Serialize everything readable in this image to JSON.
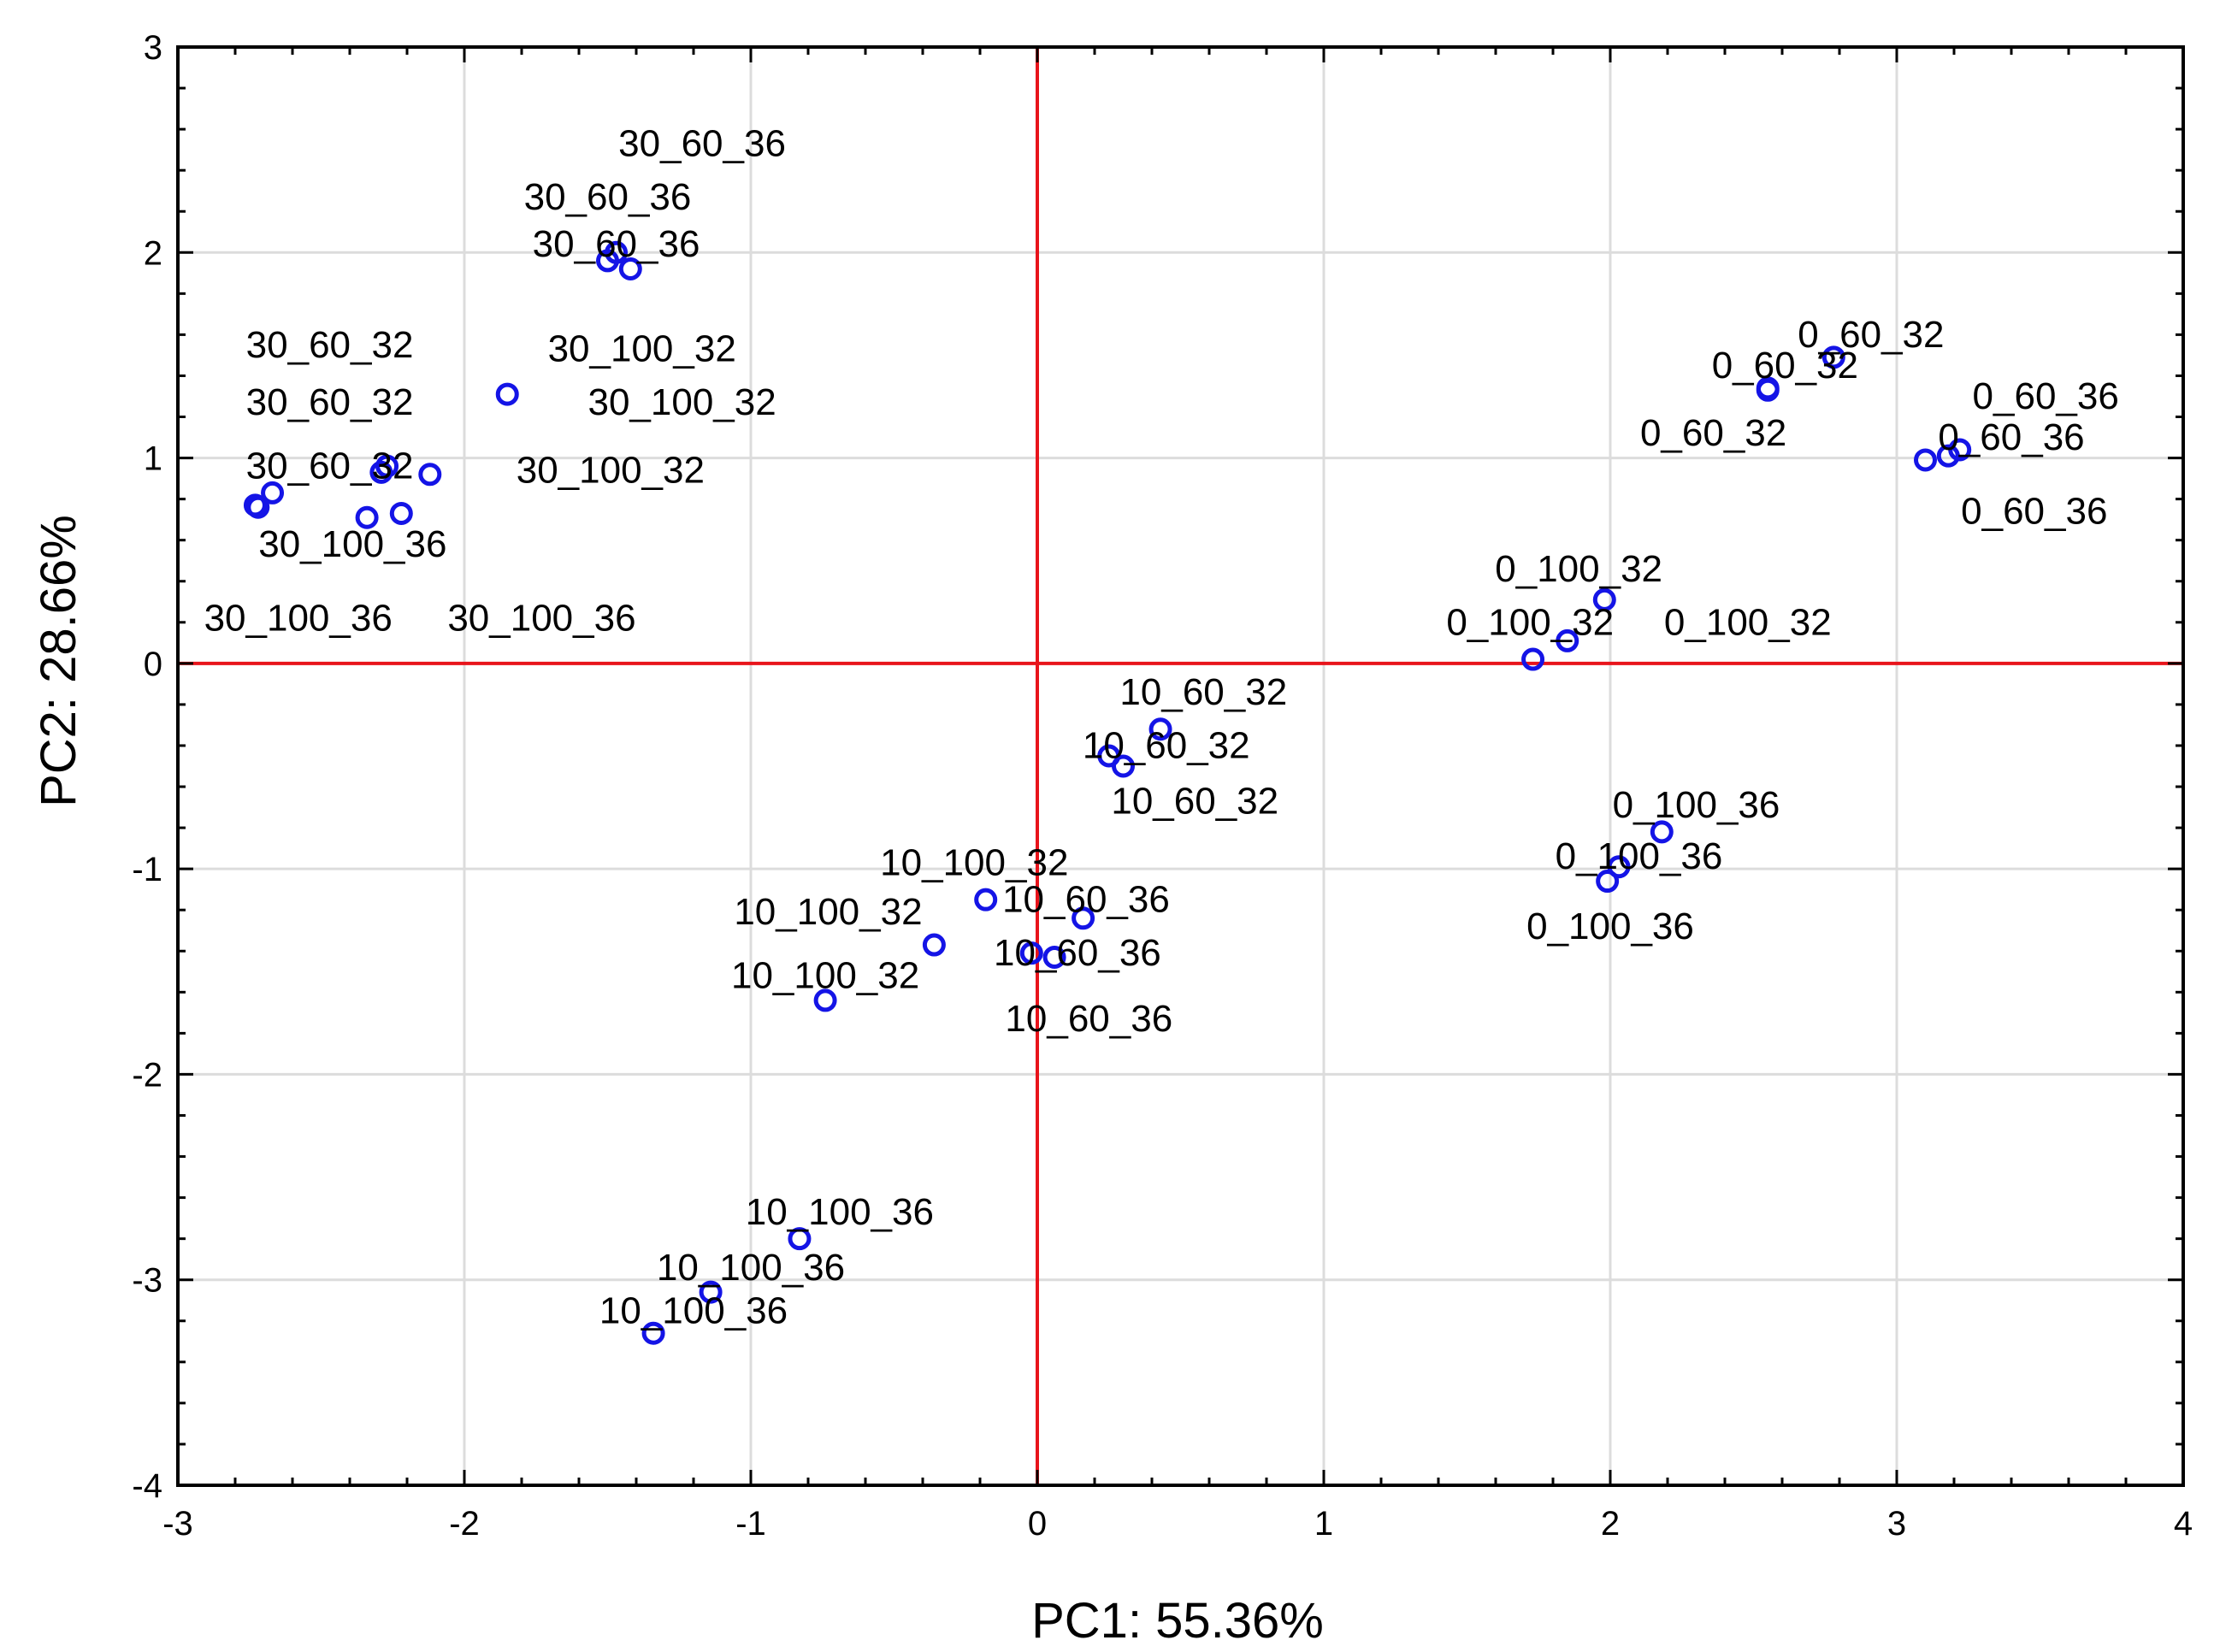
{
  "chart_data": {
    "type": "scatter",
    "title": "",
    "xlabel": "PC1: 55.36%",
    "ylabel": "PC2: 28.66%",
    "xlim": [
      -3,
      4
    ],
    "ylim": [
      -4,
      3
    ],
    "xticks": [
      -3,
      -2,
      -1,
      0,
      1,
      2,
      3,
      4
    ],
    "yticks": [
      -4,
      -3,
      -2,
      -1,
      0,
      1,
      2,
      3
    ],
    "grid": true,
    "reference_lines": {
      "x": 0,
      "y": 0,
      "color": "#e8141b"
    },
    "marker": {
      "shape": "circle",
      "fill": "none",
      "color": "#1414e6"
    },
    "points": [
      {
        "x": -1.5,
        "y": 1.96
      },
      {
        "x": -1.47,
        "y": 2.0
      },
      {
        "x": -1.42,
        "y": 1.92
      },
      {
        "x": -1.85,
        "y": 1.31
      },
      {
        "x": -2.72,
        "y": 0.76
      },
      {
        "x": -2.67,
        "y": 0.83
      },
      {
        "x": -2.29,
        "y": 0.93
      },
      {
        "x": -2.27,
        "y": 0.96
      },
      {
        "x": -2.12,
        "y": 0.92
      },
      {
        "x": -2.34,
        "y": 0.71
      },
      {
        "x": -2.22,
        "y": 0.73
      },
      {
        "x": -2.73,
        "y": 0.77
      },
      {
        "x": 2.78,
        "y": 1.49
      },
      {
        "x": 2.55,
        "y": 1.33
      },
      {
        "x": 2.55,
        "y": 1.34
      },
      {
        "x": 3.1,
        "y": 0.99
      },
      {
        "x": 3.18,
        "y": 1.01
      },
      {
        "x": 3.22,
        "y": 1.04
      },
      {
        "x": 1.98,
        "y": 0.31
      },
      {
        "x": 1.85,
        "y": 0.11
      },
      {
        "x": 1.73,
        "y": 0.02
      },
      {
        "x": 0.43,
        "y": -0.32
      },
      {
        "x": 0.25,
        "y": -0.45
      },
      {
        "x": 0.3,
        "y": -0.5
      },
      {
        "x": 2.18,
        "y": -0.82
      },
      {
        "x": 2.03,
        "y": -0.99
      },
      {
        "x": 1.99,
        "y": -1.06
      },
      {
        "x": -0.18,
        "y": -1.15
      },
      {
        "x": -0.36,
        "y": -1.37
      },
      {
        "x": -0.74,
        "y": -1.64
      },
      {
        "x": 0.16,
        "y": -1.24
      },
      {
        "x": -0.02,
        "y": -1.41
      },
      {
        "x": 0.06,
        "y": -1.43
      },
      {
        "x": -0.83,
        "y": -2.8
      },
      {
        "x": -1.14,
        "y": -3.06
      },
      {
        "x": -1.34,
        "y": -3.26
      }
    ],
    "labels": [
      {
        "text": "30_60_36",
        "x": -1.17,
        "y": 2.53
      },
      {
        "text": "30_60_36",
        "x": -1.5,
        "y": 2.27
      },
      {
        "text": "30_60_36",
        "x": -1.47,
        "y": 2.04
      },
      {
        "text": "30_100_32",
        "x": -1.38,
        "y": 1.53
      },
      {
        "text": "30_100_32",
        "x": -1.24,
        "y": 1.27
      },
      {
        "text": "30_100_32",
        "x": -1.49,
        "y": 0.94
      },
      {
        "text": "30_60_32",
        "x": -2.47,
        "y": 1.55
      },
      {
        "text": "30_60_32",
        "x": -2.47,
        "y": 1.27
      },
      {
        "text": "30_60_32",
        "x": -2.47,
        "y": 0.96
      },
      {
        "text": "30_100_36",
        "x": -2.39,
        "y": 0.58
      },
      {
        "text": "30_100_36",
        "x": -2.58,
        "y": 0.22
      },
      {
        "text": "30_100_36",
        "x": -1.73,
        "y": 0.22
      },
      {
        "text": "0_60_32",
        "x": 2.91,
        "y": 1.6
      },
      {
        "text": "0_60_32",
        "x": 2.61,
        "y": 1.45
      },
      {
        "text": "0_60_36",
        "x": 3.52,
        "y": 1.3
      },
      {
        "text": "0_60_32",
        "x": 2.36,
        "y": 1.12
      },
      {
        "text": "0_60_36",
        "x": 3.4,
        "y": 1.1
      },
      {
        "text": "0_60_36",
        "x": 3.48,
        "y": 0.74
      },
      {
        "text": "0_100_32",
        "x": 1.89,
        "y": 0.46
      },
      {
        "text": "0_100_32",
        "x": 1.72,
        "y": 0.2
      },
      {
        "text": "0_100_32",
        "x": 2.48,
        "y": 0.2
      },
      {
        "text": "10_60_32",
        "x": 0.58,
        "y": -0.14
      },
      {
        "text": "10_60_32",
        "x": 0.45,
        "y": -0.4
      },
      {
        "text": "10_60_32",
        "x": 0.55,
        "y": -0.67
      },
      {
        "text": "0_100_36",
        "x": 2.3,
        "y": -0.69
      },
      {
        "text": "0_100_36",
        "x": 2.1,
        "y": -0.94
      },
      {
        "text": "0_100_36",
        "x": 2.0,
        "y": -1.28
      },
      {
        "text": "10_100_32",
        "x": -0.22,
        "y": -0.97
      },
      {
        "text": "10_100_32",
        "x": -0.73,
        "y": -1.21
      },
      {
        "text": "10_100_32",
        "x": -0.74,
        "y": -1.52
      },
      {
        "text": "10_60_36",
        "x": 0.17,
        "y": -1.15
      },
      {
        "text": "10_60_36",
        "x": 0.14,
        "y": -1.41
      },
      {
        "text": "10_60_36",
        "x": 0.18,
        "y": -1.73
      },
      {
        "text": "10_100_36",
        "x": -0.69,
        "y": -2.67
      },
      {
        "text": "10_100_36",
        "x": -1.0,
        "y": -2.94
      },
      {
        "text": "10_100_36",
        "x": -1.2,
        "y": -3.15
      }
    ]
  }
}
